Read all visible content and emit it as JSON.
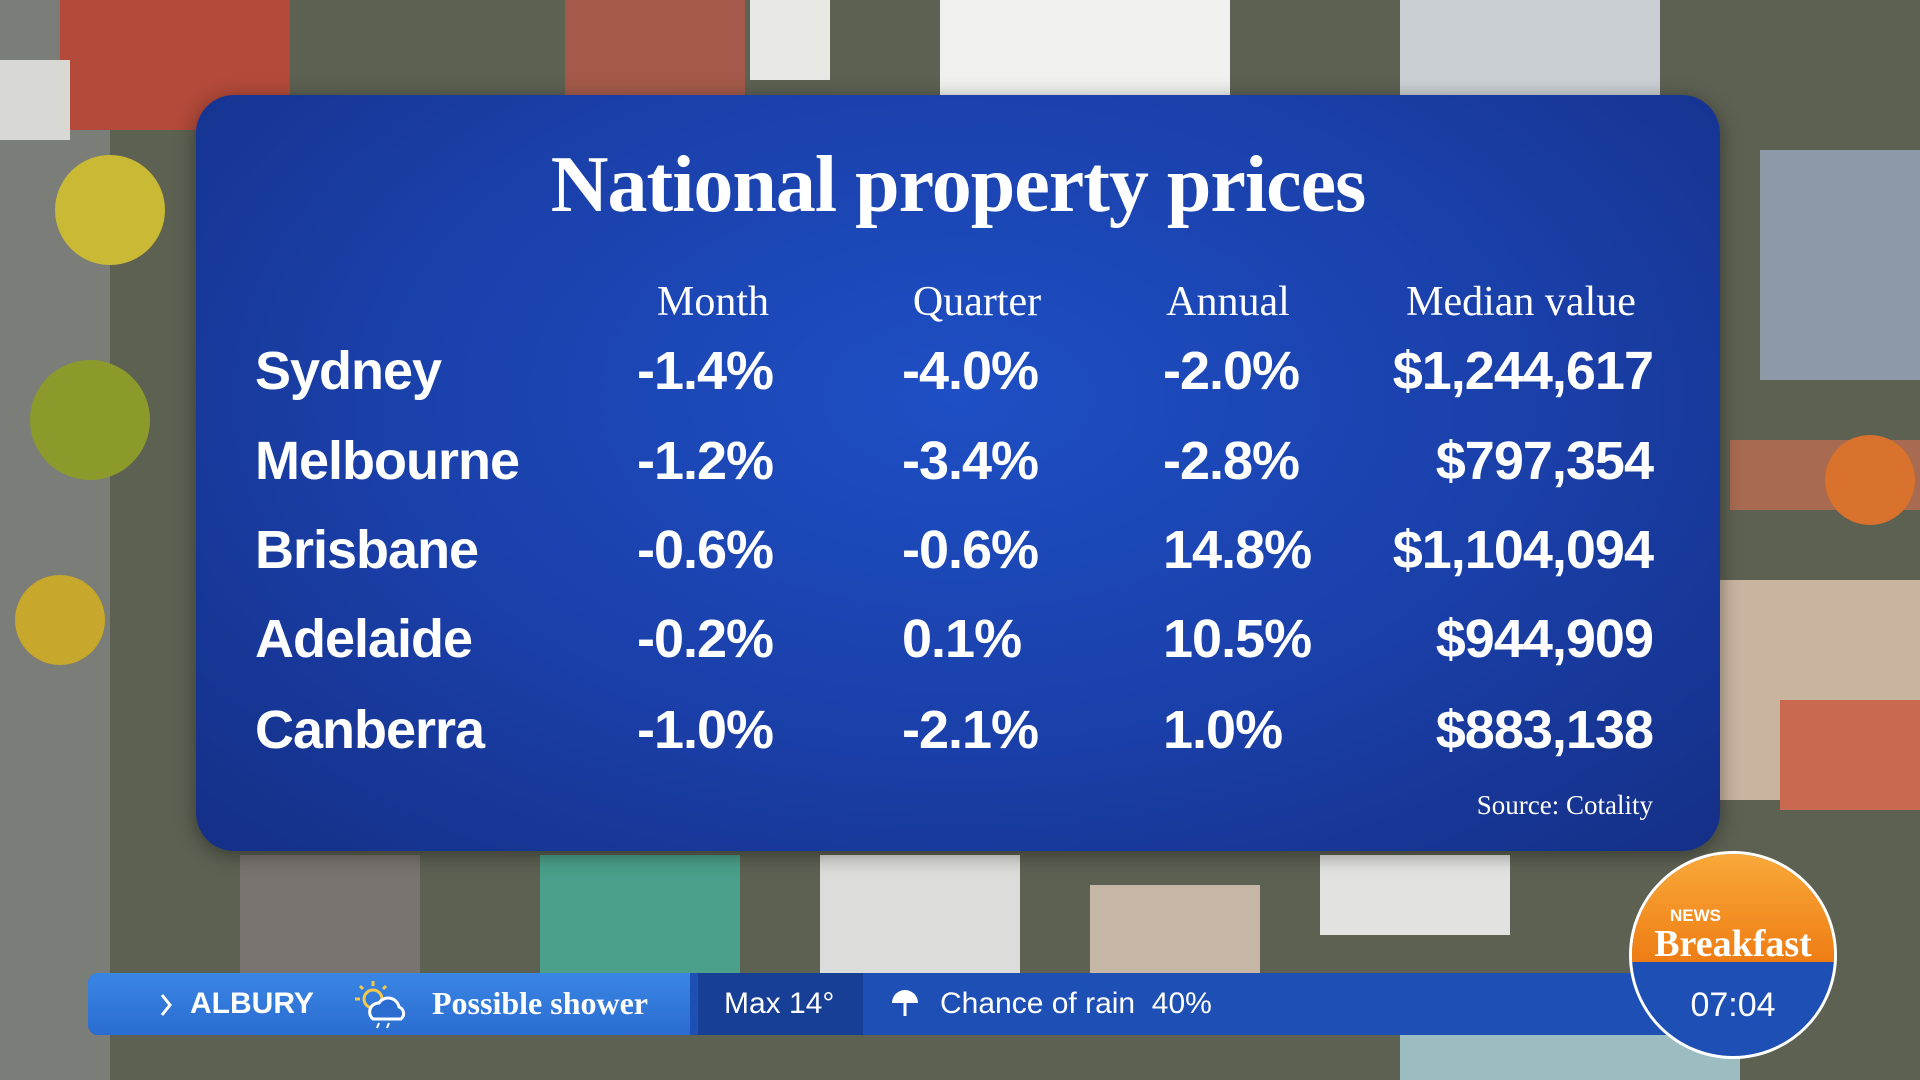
{
  "graphic": {
    "title": "National property prices",
    "columns": [
      "Month",
      "Quarter",
      "Annual",
      "Median value"
    ],
    "rows": [
      [
        "Sydney",
        "-1.4%",
        "-4.0%",
        "-2.0%",
        "$1,244,617"
      ],
      [
        "Melbourne",
        "-1.2%",
        "-3.4%",
        "-2.8%",
        "$797,354"
      ],
      [
        "Brisbane",
        "-0.6%",
        "-0.6%",
        "14.8%",
        "$1,104,094"
      ],
      [
        "Adelaide",
        "-0.2%",
        "0.1%",
        "10.5%",
        "$944,909"
      ],
      [
        "Canberra",
        "-1.0%",
        "-2.1%",
        "1.0%",
        "$883,138"
      ]
    ],
    "source": "Source: Cotality"
  },
  "ticker": {
    "location": "ALBURY",
    "weather": "Possible shower",
    "max": "Max 14°",
    "rain": "Chance of rain  40%"
  },
  "brand": {
    "network": "NEWS",
    "program": "Breakfast",
    "time": "07:04"
  }
}
